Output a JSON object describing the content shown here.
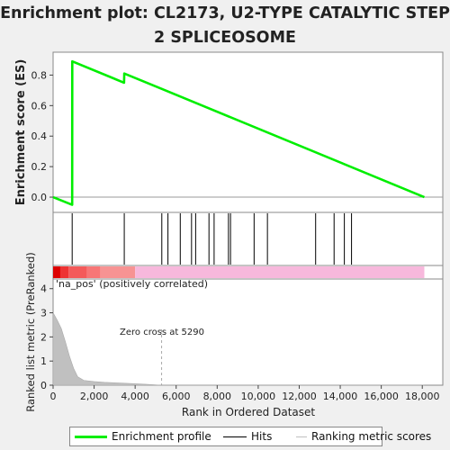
{
  "chart_data": {
    "title": "Enrichment plot: CL2173, U2-TYPE CATALYTIC STEP 2 SPLICEOSOME",
    "type": "line",
    "x_range": [
      0,
      19000
    ],
    "enrichment_panel": {
      "ylabel": "Enrichment score (ES)",
      "ylim": [
        -0.1,
        0.95
      ],
      "yticks": [
        0.0,
        0.2,
        0.4,
        0.6,
        0.8
      ],
      "ytick_labels": [
        "0.0",
        "0.2",
        "0.4",
        "0.6",
        "0.8"
      ],
      "series": [
        {
          "name": "Enrichment profile",
          "color": "#00ee00",
          "x": [
            0,
            930,
            935,
            3460,
            3470,
            5290,
            18100
          ],
          "y": [
            0.0,
            -0.05,
            0.89,
            0.75,
            0.81,
            0.71,
            0.0
          ]
        }
      ]
    },
    "hits_panel": {
      "hit_positions": [
        930,
        3470,
        5300,
        5600,
        6200,
        6750,
        6950,
        7600,
        7850,
        8550,
        8650,
        9800,
        10450,
        12800,
        13700,
        14200,
        14550
      ]
    },
    "ranked_metric_panel": {
      "ylabel": "Ranked list metric (PreRanked)",
      "ylim": [
        0,
        4.4
      ],
      "yticks": [
        0,
        1,
        2,
        3,
        4
      ],
      "ytick_labels": [
        "0",
        "1",
        "2",
        "3",
        "4"
      ],
      "x": [
        0,
        200,
        400,
        600,
        800,
        1000,
        1200,
        1500,
        2000,
        2500,
        3000,
        3500,
        4500,
        5290,
        18100
      ],
      "y": [
        3.0,
        2.7,
        2.35,
        1.8,
        1.2,
        0.7,
        0.35,
        0.2,
        0.15,
        0.12,
        0.1,
        0.08,
        0.04,
        0.0,
        0.0
      ],
      "fill_color": "#c0c0c0",
      "zero_cross_label": "Zero cross at 5290",
      "zero_cross_x": 5290,
      "correlation_label": "'na_pos' (positively correlated)",
      "correlation_label_color": "#dd3333"
    },
    "xlabel": "Rank in Ordered Dataset",
    "xticks": [
      0,
      2000,
      4000,
      6000,
      8000,
      10000,
      12000,
      14000,
      16000,
      18000
    ],
    "xtick_labels": [
      "0",
      "2,000",
      "4,000",
      "6,000",
      "8,000",
      "10,000",
      "12,000",
      "14,000",
      "16,000",
      "18,000"
    ],
    "color_band_segments": [
      {
        "from": 0,
        "to": 350,
        "color": "#dd0000"
      },
      {
        "from": 350,
        "to": 750,
        "color": "#ee3333"
      },
      {
        "from": 750,
        "to": 1650,
        "color": "#f45a5a"
      },
      {
        "from": 1650,
        "to": 2300,
        "color": "#f77676"
      },
      {
        "from": 2300,
        "to": 4000,
        "color": "#f79393"
      },
      {
        "from": 4000,
        "to": 18100,
        "color": "#f7b8dc"
      }
    ],
    "legend": {
      "position": "bottom",
      "entries": [
        {
          "label": "Enrichment profile",
          "color": "#00ee00"
        },
        {
          "label": "Hits",
          "color": "#000000"
        },
        {
          "label": "Ranking metric scores",
          "color": "#c0c0c0"
        }
      ]
    }
  }
}
